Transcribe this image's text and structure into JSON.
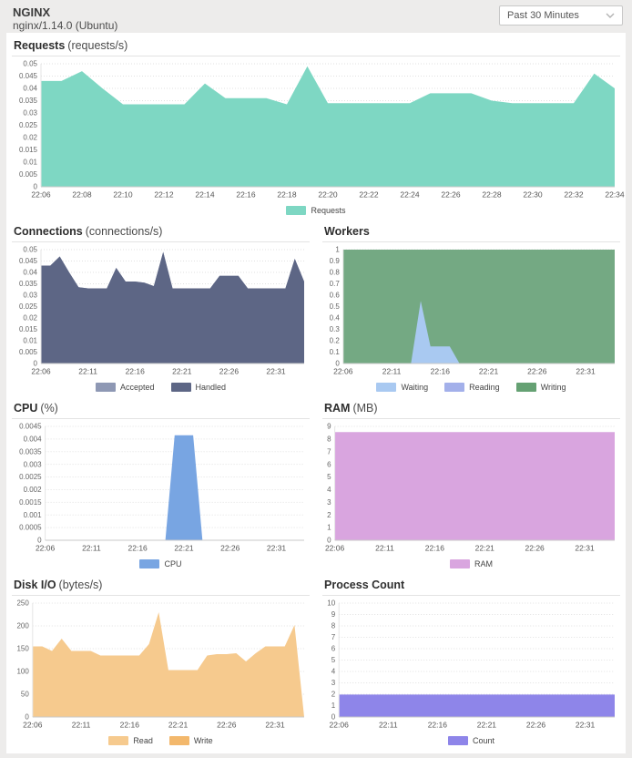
{
  "header": {
    "title": "NGINX",
    "subtitle": "nginx/1.14.0 (Ubuntu)"
  },
  "time_range": {
    "selected": "Past 30 Minutes"
  },
  "chart_data": [
    {
      "id": "requests",
      "type": "area",
      "title": "Requests",
      "unit": "(requests/s)",
      "full_width": true,
      "ylim": [
        0,
        0.05
      ],
      "ytick_step": 0.005,
      "x_points": 29,
      "x_labels": [
        {
          "t": 0,
          "text": "22:06"
        },
        {
          "t": 2,
          "text": "22:08"
        },
        {
          "t": 4,
          "text": "22:10"
        },
        {
          "t": 6,
          "text": "22:12"
        },
        {
          "t": 8,
          "text": "22:14"
        },
        {
          "t": 10,
          "text": "22:16"
        },
        {
          "t": 12,
          "text": "22:18"
        },
        {
          "t": 14,
          "text": "22:20"
        },
        {
          "t": 16,
          "text": "22:22"
        },
        {
          "t": 18,
          "text": "22:24"
        },
        {
          "t": 20,
          "text": "22:26"
        },
        {
          "t": 22,
          "text": "22:28"
        },
        {
          "t": 24,
          "text": "22:30"
        },
        {
          "t": 26,
          "text": "22:32"
        },
        {
          "t": 28,
          "text": "22:34"
        }
      ],
      "series": [
        {
          "name": "Requests",
          "color": "#7ed7c3",
          "values": [
            0.043,
            0.043,
            0.047,
            0.04,
            0.0335,
            0.0335,
            0.0335,
            0.0335,
            0.042,
            0.036,
            0.036,
            0.036,
            0.0335,
            0.049,
            0.034,
            0.034,
            0.034,
            0.034,
            0.034,
            0.038,
            0.038,
            0.038,
            0.035,
            0.034,
            0.034,
            0.034,
            0.034,
            0.046,
            0.04
          ]
        }
      ],
      "legend": [
        {
          "label": "Requests",
          "color": "#7ed7c3"
        }
      ]
    },
    {
      "id": "connections",
      "type": "area",
      "title": "Connections",
      "unit": "(connections/s)",
      "full_width": false,
      "ylim": [
        0,
        0.05
      ],
      "ytick_step": 0.005,
      "x_points": 29,
      "x_labels": [
        {
          "t": 0,
          "text": "22:06"
        },
        {
          "t": 5,
          "text": "22:11"
        },
        {
          "t": 10,
          "text": "22:16"
        },
        {
          "t": 15,
          "text": "22:21"
        },
        {
          "t": 20,
          "text": "22:26"
        },
        {
          "t": 25,
          "text": "22:31"
        }
      ],
      "series": [
        {
          "name": "Accepted",
          "color": "#8e98b4",
          "values": [
            0.043,
            0.043,
            0.047,
            0.04,
            0.0335,
            0.033,
            0.033,
            0.033,
            0.042,
            0.036,
            0.036,
            0.0355,
            0.034,
            0.049,
            0.033,
            0.033,
            0.033,
            0.033,
            0.033,
            0.0385,
            0.0385,
            0.0385,
            0.033,
            0.033,
            0.033,
            0.033,
            0.033,
            0.046,
            0.036
          ]
        },
        {
          "name": "Handled",
          "color": "#5d6685",
          "values": [
            0.043,
            0.043,
            0.047,
            0.04,
            0.0335,
            0.033,
            0.033,
            0.033,
            0.042,
            0.036,
            0.036,
            0.0355,
            0.034,
            0.049,
            0.033,
            0.033,
            0.033,
            0.033,
            0.033,
            0.0385,
            0.0385,
            0.0385,
            0.033,
            0.033,
            0.033,
            0.033,
            0.033,
            0.046,
            0.036
          ]
        }
      ],
      "legend": [
        {
          "label": "Accepted",
          "color": "#8e98b4"
        },
        {
          "label": "Handled",
          "color": "#5d6685"
        }
      ]
    },
    {
      "id": "workers",
      "type": "area",
      "title": "Workers",
      "unit": "",
      "full_width": false,
      "ylim": [
        0,
        1
      ],
      "ytick_step": 0.1,
      "x_points": 29,
      "x_labels": [
        {
          "t": 0,
          "text": "22:06"
        },
        {
          "t": 5,
          "text": "22:11"
        },
        {
          "t": 10,
          "text": "22:16"
        },
        {
          "t": 15,
          "text": "22:21"
        },
        {
          "t": 20,
          "text": "22:26"
        },
        {
          "t": 25,
          "text": "22:31"
        }
      ],
      "series": [
        {
          "name": "Writing",
          "color": "#74a983",
          "values": [
            1,
            1,
            1,
            1,
            1,
            1,
            1,
            1,
            1,
            1,
            1,
            1,
            1,
            1,
            1,
            1,
            1,
            1,
            1,
            1,
            1,
            1,
            1,
            1,
            1,
            1,
            1,
            1,
            1
          ]
        },
        {
          "name": "Reading",
          "color": "#a3b0ea",
          "values": [
            0,
            0,
            0,
            0,
            0,
            0,
            0,
            0,
            0,
            0,
            0,
            0,
            0,
            0,
            0,
            0,
            0,
            0,
            0,
            0,
            0,
            0,
            0,
            0,
            0,
            0,
            0,
            0,
            0
          ]
        },
        {
          "name": "Waiting",
          "color": "#a9c9f1",
          "values": [
            0,
            0,
            0,
            0,
            0,
            0,
            0,
            0,
            0.55,
            0.15,
            0.15,
            0.15,
            0,
            0,
            0,
            0,
            0,
            0,
            0,
            0,
            0,
            0,
            0,
            0,
            0,
            0,
            0,
            0,
            0
          ]
        }
      ],
      "legend": [
        {
          "label": "Waiting",
          "color": "#a9c9f1"
        },
        {
          "label": "Reading",
          "color": "#a3b0ea"
        },
        {
          "label": "Writing",
          "color": "#65a173"
        }
      ]
    },
    {
      "id": "cpu",
      "type": "area",
      "title": "CPU",
      "unit": "(%)",
      "full_width": false,
      "ylim": [
        0,
        0.0045
      ],
      "ytick_step": 0.0005,
      "x_points": 29,
      "x_labels": [
        {
          "t": 0,
          "text": "22:06"
        },
        {
          "t": 5,
          "text": "22:11"
        },
        {
          "t": 10,
          "text": "22:16"
        },
        {
          "t": 15,
          "text": "22:21"
        },
        {
          "t": 20,
          "text": "22:26"
        },
        {
          "t": 25,
          "text": "22:31"
        }
      ],
      "series": [
        {
          "name": "CPU",
          "color": "#78a5e2",
          "values": [
            0,
            0,
            0,
            0,
            0,
            0,
            0,
            0,
            0,
            0,
            0,
            0,
            0,
            0,
            0.00415,
            0.00415,
            0.00415,
            0,
            0,
            0,
            0,
            0,
            0,
            0,
            0,
            0,
            0,
            0,
            0
          ]
        }
      ],
      "legend": [
        {
          "label": "CPU",
          "color": "#78a5e2"
        }
      ]
    },
    {
      "id": "ram",
      "type": "area",
      "title": "RAM",
      "unit": "(MB)",
      "full_width": false,
      "ylim": [
        0,
        9
      ],
      "ytick_step": 1,
      "x_points": 29,
      "x_labels": [
        {
          "t": 0,
          "text": "22:06"
        },
        {
          "t": 5,
          "text": "22:11"
        },
        {
          "t": 10,
          "text": "22:16"
        },
        {
          "t": 15,
          "text": "22:21"
        },
        {
          "t": 20,
          "text": "22:26"
        },
        {
          "t": 25,
          "text": "22:31"
        }
      ],
      "series": [
        {
          "name": "RAM",
          "color": "#d9a5df",
          "values": [
            8.55,
            8.55,
            8.55,
            8.55,
            8.55,
            8.55,
            8.55,
            8.55,
            8.55,
            8.55,
            8.55,
            8.55,
            8.55,
            8.55,
            8.55,
            8.55,
            8.55,
            8.55,
            8.55,
            8.55,
            8.55,
            8.55,
            8.55,
            8.55,
            8.55,
            8.55,
            8.55,
            8.55,
            8.55
          ]
        }
      ],
      "legend": [
        {
          "label": "RAM",
          "color": "#d9a5df"
        }
      ]
    },
    {
      "id": "disk-io",
      "type": "area",
      "title": "Disk I/O",
      "unit": "(bytes/s)",
      "full_width": false,
      "ylim": [
        0,
        250
      ],
      "ytick_step": 50,
      "x_points": 29,
      "x_labels": [
        {
          "t": 0,
          "text": "22:06"
        },
        {
          "t": 5,
          "text": "22:11"
        },
        {
          "t": 10,
          "text": "22:16"
        },
        {
          "t": 15,
          "text": "22:21"
        },
        {
          "t": 20,
          "text": "22:26"
        },
        {
          "t": 25,
          "text": "22:31"
        }
      ],
      "series": [
        {
          "name": "Read",
          "color": "#f6ca8e",
          "values": [
            155,
            155,
            145,
            172,
            145,
            145,
            145,
            135,
            135,
            135,
            135,
            135,
            160,
            230,
            103,
            103,
            103,
            103,
            135,
            138,
            138,
            140,
            122,
            140,
            155,
            155,
            155,
            202,
            0
          ]
        },
        {
          "name": "Write",
          "color": "#f3b86c",
          "values": [
            0,
            0,
            0,
            0,
            0,
            0,
            0,
            0,
            0,
            0,
            0,
            0,
            0,
            0,
            0,
            0,
            0,
            0,
            0,
            0,
            0,
            0,
            0,
            0,
            0,
            0,
            0,
            0,
            0
          ]
        }
      ],
      "legend": [
        {
          "label": "Read",
          "color": "#f6ca8e"
        },
        {
          "label": "Write",
          "color": "#f3b86c"
        }
      ]
    },
    {
      "id": "process-count",
      "type": "area",
      "title": "Process Count",
      "unit": "",
      "full_width": false,
      "ylim": [
        0,
        10
      ],
      "ytick_step": 1,
      "x_points": 29,
      "x_labels": [
        {
          "t": 0,
          "text": "22:06"
        },
        {
          "t": 5,
          "text": "22:11"
        },
        {
          "t": 10,
          "text": "22:16"
        },
        {
          "t": 15,
          "text": "22:21"
        },
        {
          "t": 20,
          "text": "22:26"
        },
        {
          "t": 25,
          "text": "22:31"
        }
      ],
      "series": [
        {
          "name": "Count",
          "color": "#8e85e9",
          "values": [
            1.97,
            1.97,
            1.97,
            1.97,
            1.97,
            1.97,
            1.97,
            1.97,
            1.97,
            1.97,
            1.97,
            1.97,
            1.97,
            1.97,
            1.97,
            1.97,
            1.97,
            1.97,
            1.97,
            1.97,
            1.97,
            1.97,
            1.97,
            1.97,
            1.97,
            1.97,
            1.97,
            1.97,
            1.97
          ]
        }
      ],
      "legend": [
        {
          "label": "Count",
          "color": "#8e85e9"
        }
      ]
    }
  ]
}
